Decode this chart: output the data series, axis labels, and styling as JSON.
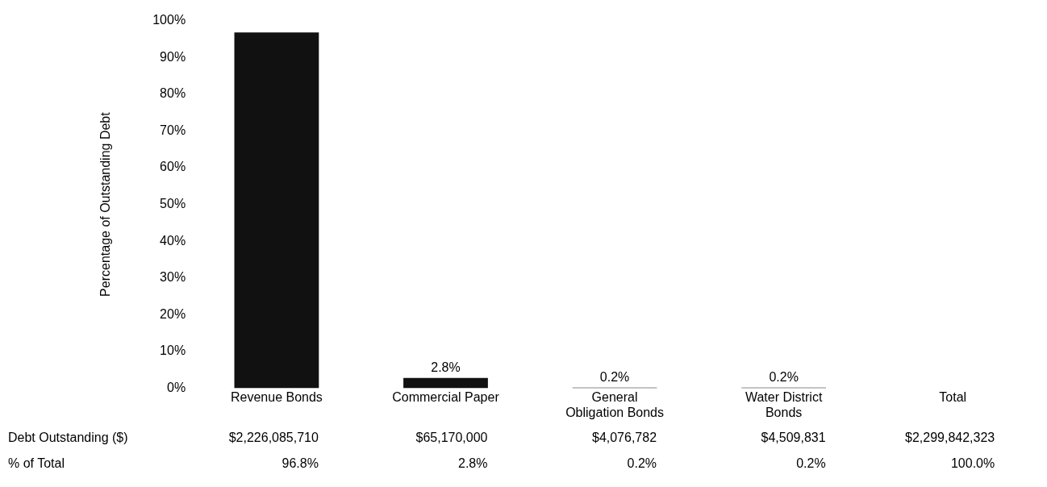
{
  "chart_data": {
    "type": "bar",
    "ylabel": "Percentage of Outstanding Debt",
    "categories": [
      "Revenue Bonds",
      "Commercial Paper",
      "General Obligation Bonds",
      "Water District Bonds",
      "Total"
    ],
    "values": [
      96.8,
      2.8,
      0.2,
      0.2,
      null
    ],
    "value_labels": [
      null,
      "2.8%",
      "0.2%",
      "0.2%",
      null
    ],
    "color": "#111111",
    "ylim": [
      0,
      100
    ],
    "yticks": [
      {
        "value": 0,
        "label": "0%"
      },
      {
        "value": 10,
        "label": "10%"
      },
      {
        "value": 20,
        "label": "20%"
      },
      {
        "value": 30,
        "label": "30%"
      },
      {
        "value": 40,
        "label": "40%"
      },
      {
        "value": 50,
        "label": "50%"
      },
      {
        "value": 60,
        "label": "60%"
      },
      {
        "value": 70,
        "label": "70%"
      },
      {
        "value": 80,
        "label": "80%"
      },
      {
        "value": 90,
        "label": "90%"
      },
      {
        "value": 100,
        "label": "100%"
      }
    ],
    "grid": false,
    "legend": false,
    "annotations": [
      "Debt Outstanding ($)",
      "$2,226,085,710",
      "$65,170,000",
      "$4,076,782",
      "$4,509,831",
      "$2,299,842,323",
      "% of Total",
      "96.8%",
      "2.8%",
      "0.2%",
      "0.2%",
      "100.0%"
    ]
  }
}
